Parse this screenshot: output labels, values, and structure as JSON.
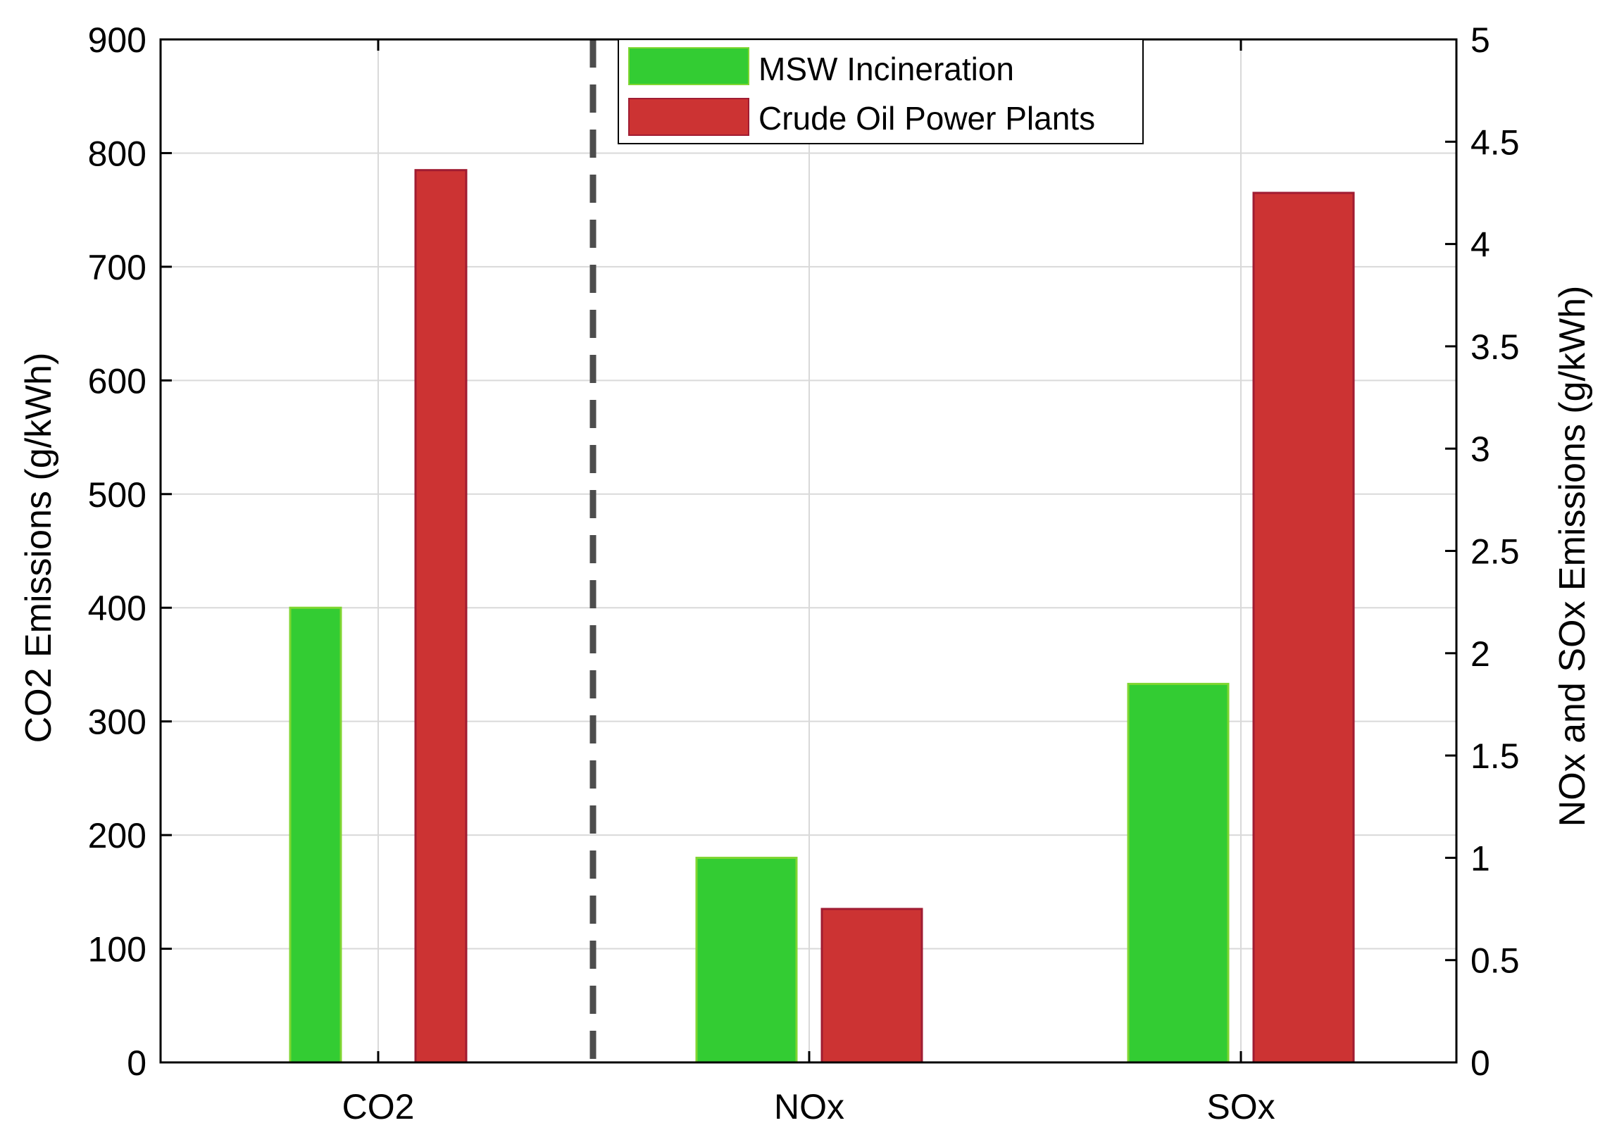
{
  "chart_data": {
    "type": "bar",
    "categories": [
      "CO2",
      "NOx",
      "SOx"
    ],
    "series": [
      {
        "name": "MSW Incineration",
        "color": "#33cc33",
        "border": "#7fd631",
        "values": [
          400,
          1.0,
          1.85
        ],
        "axes": [
          "left",
          "right",
          "right"
        ]
      },
      {
        "name": "Crude Oil Power Plants",
        "color": "#cc3333",
        "border": "#a01c32",
        "values": [
          785,
          0.75,
          4.25
        ],
        "axes": [
          "left",
          "right",
          "right"
        ]
      }
    ],
    "ylabel_left": "CO2 Emissions (g/kWh)",
    "ylabel_right": "NOx and SOx Emissions (g/kWh)",
    "ylim_left": [
      0,
      900
    ],
    "ylim_right": [
      0,
      5
    ],
    "yticks_left": [
      "0",
      "100",
      "200",
      "300",
      "400",
      "500",
      "600",
      "700",
      "800",
      "900"
    ],
    "yticks_right": [
      "0",
      "0.5",
      "1",
      "1.5",
      "2",
      "2.5",
      "3",
      "3.5",
      "4",
      "4.5",
      "5"
    ],
    "grid": true,
    "legend_position": "top-center",
    "separator": "dashed vertical line between CO2 and NOx groups"
  }
}
